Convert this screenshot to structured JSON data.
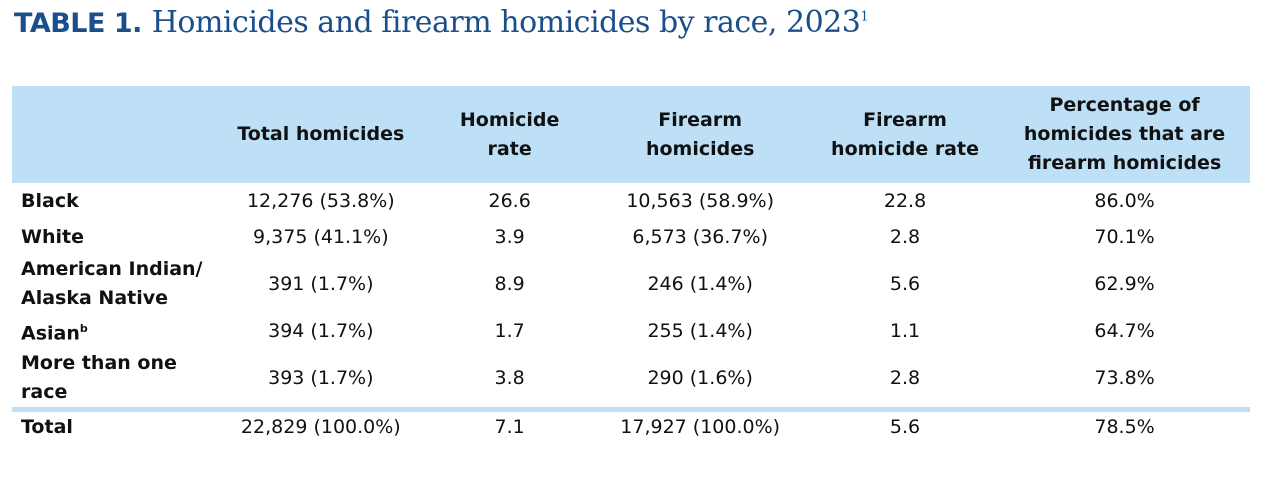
{
  "title": {
    "label": "TABLE 1.",
    "text": "Homicides and firearm homicides by race, 2023",
    "footnote": "1"
  },
  "headers": [
    "",
    "Total homicides",
    "Homicide rate",
    "Firearm homicides",
    "Firearm homicide rate",
    "Percentage of homicides that are firearm homicides"
  ],
  "rows": [
    {
      "label": "Black",
      "sup": "",
      "total": "12,276 (53.8%)",
      "rate": "26.6",
      "firearm": "10,563 (58.9%)",
      "firearm_rate": "22.8",
      "pct": "86.0%"
    },
    {
      "label": "White",
      "sup": "",
      "total": "9,375 (41.1%)",
      "rate": "3.9",
      "firearm": "6,573 (36.7%)",
      "firearm_rate": "2.8",
      "pct": "70.1%"
    },
    {
      "label": "American Indian/ Alaska Native",
      "sup": "",
      "total": "391 (1.7%)",
      "rate": "8.9",
      "firearm": "246 (1.4%)",
      "firearm_rate": "5.6",
      "pct": "62.9%"
    },
    {
      "label": "Asian",
      "sup": "b",
      "total": "394 (1.7%)",
      "rate": "1.7",
      "firearm": "255 (1.4%)",
      "firearm_rate": "1.1",
      "pct": "64.7%"
    },
    {
      "label": "More than one race",
      "sup": "",
      "total": "393 (1.7%)",
      "rate": "3.8",
      "firearm": "290 (1.6%)",
      "firearm_rate": "2.8",
      "pct": "73.8%"
    }
  ],
  "total": {
    "label": "Total",
    "total": "22,829 (100.0%)",
    "rate": "7.1",
    "firearm": "17,927 (100.0%)",
    "firearm_rate": "5.6",
    "pct": "78.5%"
  },
  "colors": {
    "title": "#1b4f8c",
    "header_bg": "#bde0f7"
  }
}
